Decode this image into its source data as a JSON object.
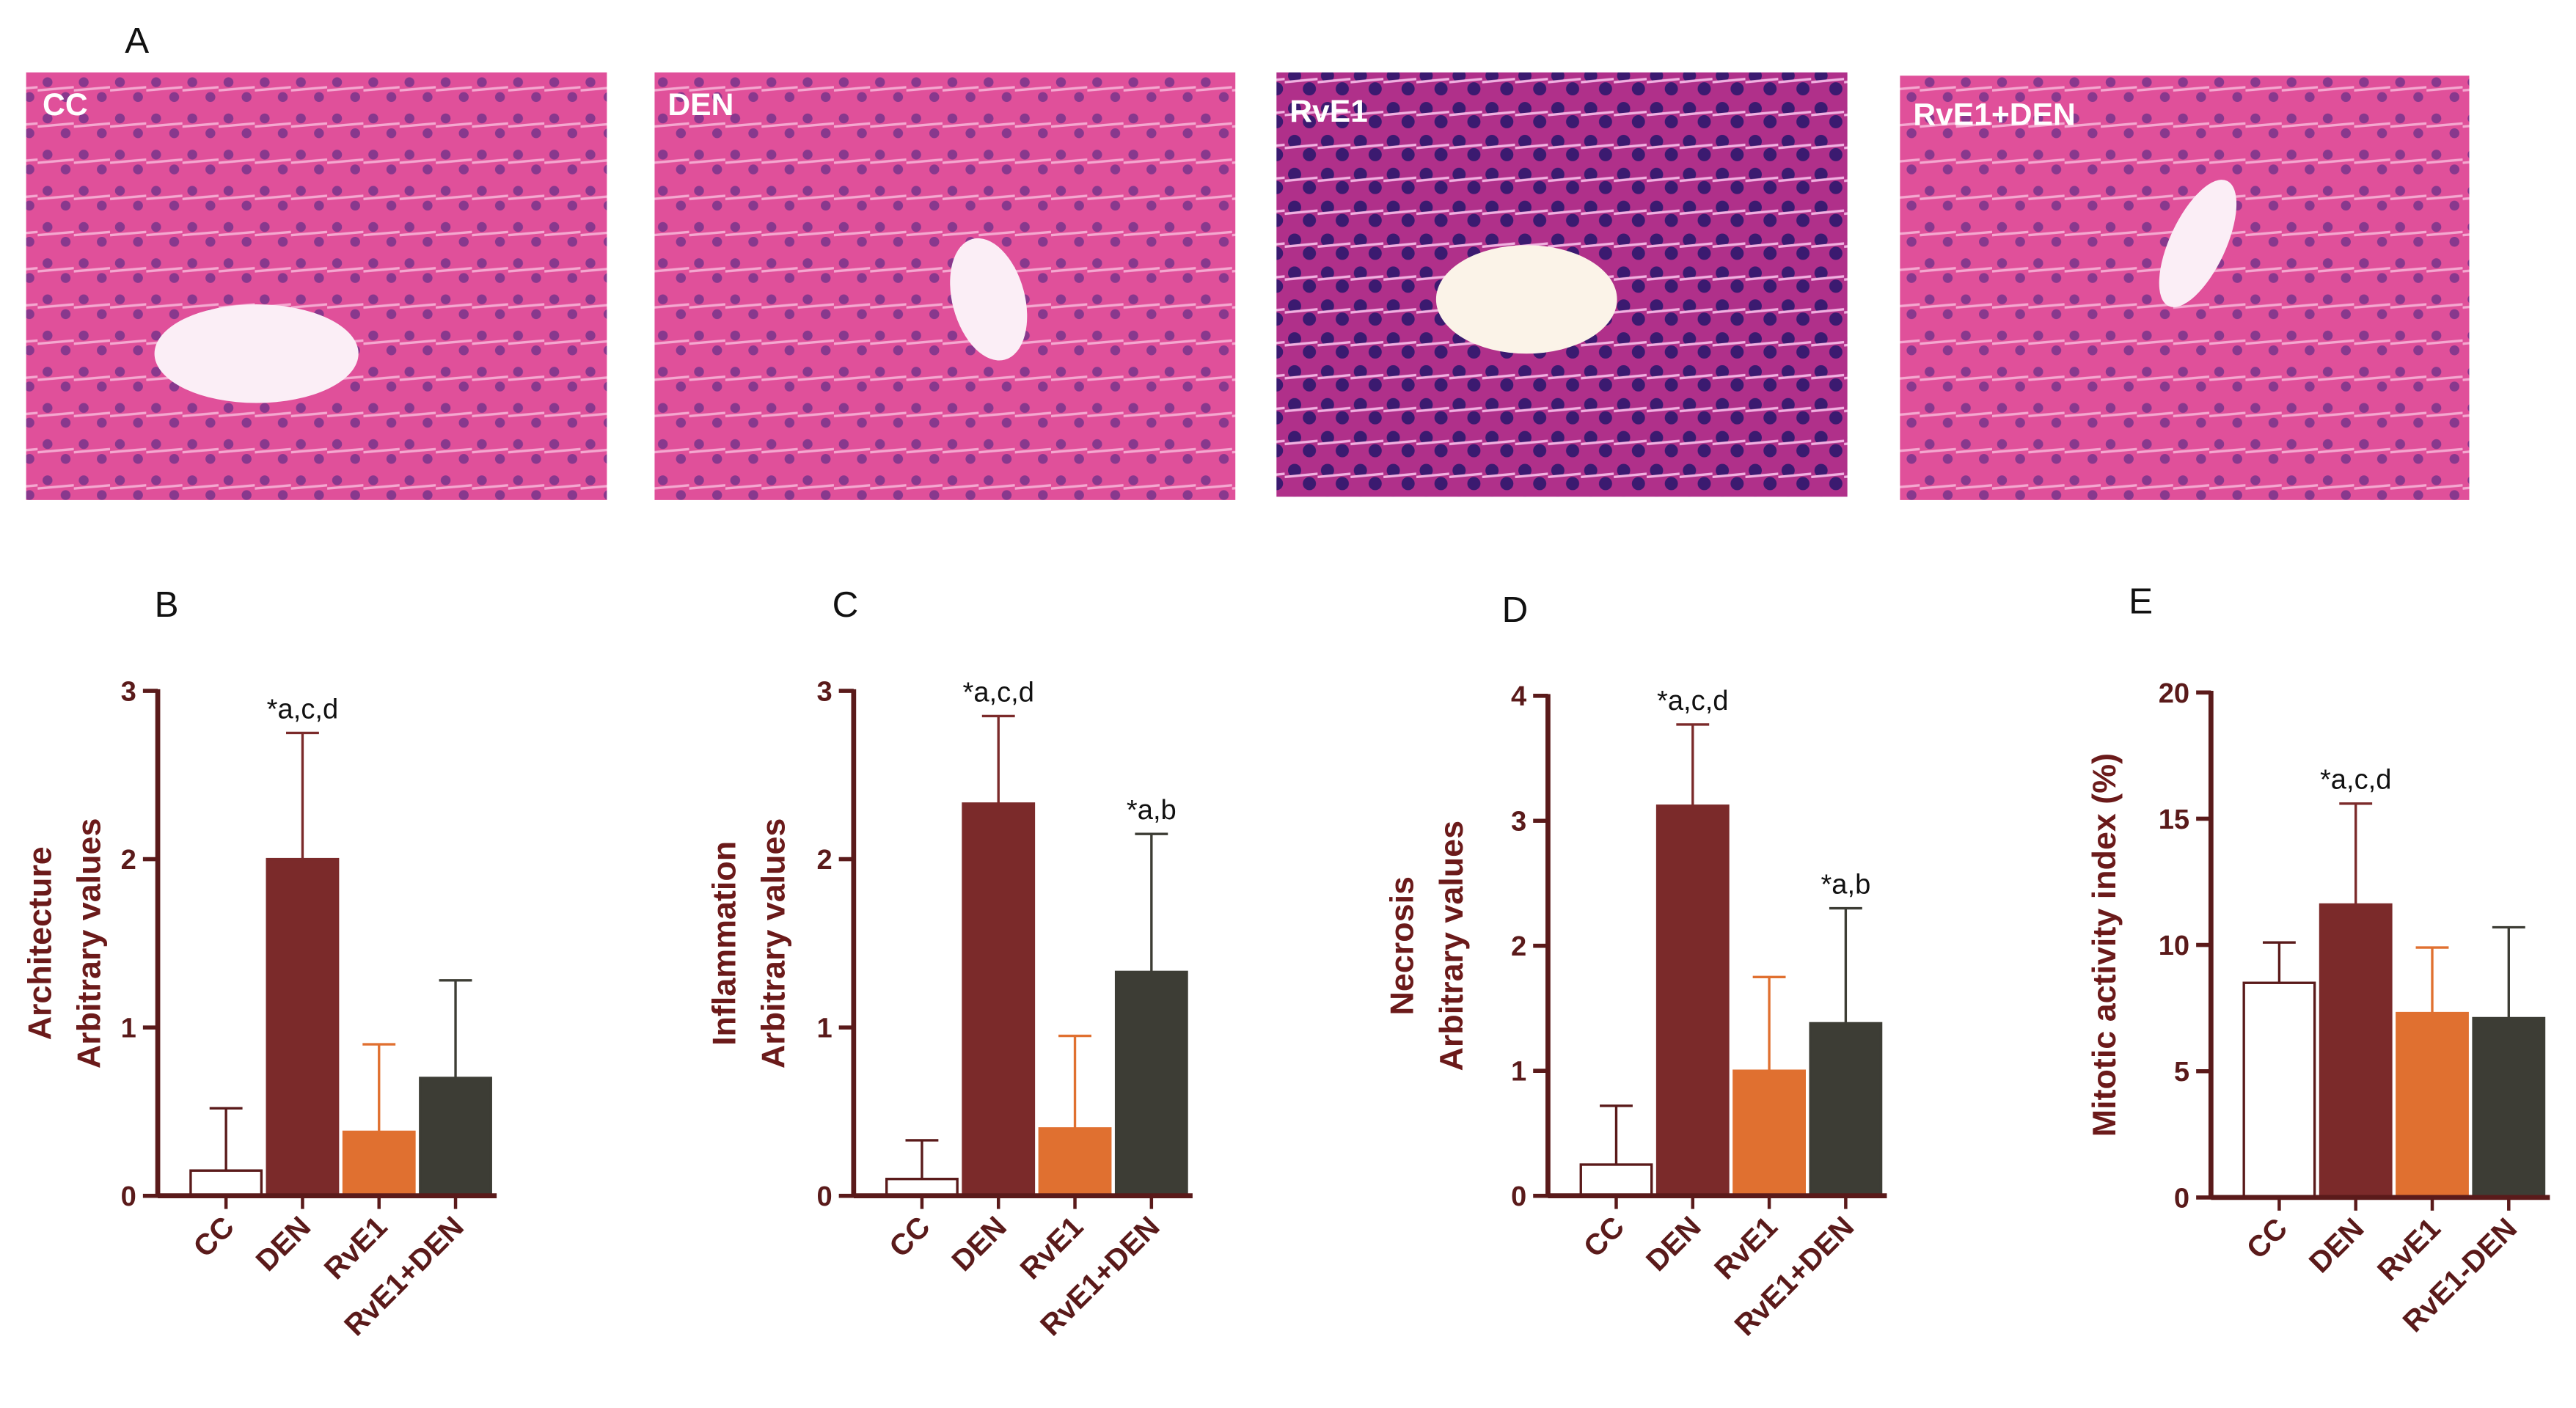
{
  "micrographs": {
    "panel": "A",
    "labels": [
      "CC",
      "DEN",
      "RvE1",
      "RvE1+DEN"
    ]
  },
  "chart_data": [
    {
      "type": "bar",
      "panel": "B",
      "ylabel": [
        "Architecture",
        "Arbitrary values"
      ],
      "categories": [
        "CC",
        "DEN",
        "RvE1",
        "RvE1+DEN"
      ],
      "values": [
        0.15,
        2.0,
        0.38,
        0.7
      ],
      "errors": [
        0.37,
        0.75,
        0.52,
        0.58
      ],
      "colors": [
        "#ffffff",
        "#7b2a2a",
        "#e07030",
        "#3d3d35"
      ],
      "annotations": [
        null,
        "*a,c,d",
        null,
        null
      ],
      "ylim": [
        0,
        3
      ],
      "yticks": [
        0,
        1,
        2,
        3
      ]
    },
    {
      "type": "bar",
      "panel": "C",
      "ylabel": [
        "Inflammation",
        "Arbitrary values"
      ],
      "categories": [
        "CC",
        "DEN",
        "RvE1",
        "RvE1+DEN"
      ],
      "values": [
        0.1,
        2.33,
        0.4,
        1.33
      ],
      "errors": [
        0.23,
        0.52,
        0.55,
        0.82
      ],
      "colors": [
        "#ffffff",
        "#7b2a2a",
        "#e07030",
        "#3d3d35"
      ],
      "annotations": [
        null,
        "*a,c,d",
        null,
        "*a,b"
      ],
      "ylim": [
        0,
        3
      ],
      "yticks": [
        0,
        1,
        2,
        3
      ]
    },
    {
      "type": "bar",
      "panel": "D",
      "ylabel": [
        "Necrosis",
        "Arbitrary values"
      ],
      "categories": [
        "CC",
        "DEN",
        "RvE1",
        "RvE1+DEN"
      ],
      "values": [
        0.25,
        3.12,
        1.0,
        1.38
      ],
      "errors": [
        0.47,
        0.65,
        0.75,
        0.92
      ],
      "colors": [
        "#ffffff",
        "#7b2a2a",
        "#e07030",
        "#3d3d35"
      ],
      "annotations": [
        null,
        "*a,c,d",
        null,
        "*a,b"
      ],
      "ylim": [
        0,
        4
      ],
      "yticks": [
        0,
        1,
        2,
        3,
        4
      ]
    },
    {
      "type": "bar",
      "panel": "E",
      "ylabel": [
        "Mitotic activity index (%)"
      ],
      "categories": [
        "CC",
        "DEN",
        "RvE1",
        "RvE1-DEN"
      ],
      "values": [
        8.5,
        11.6,
        7.3,
        7.1
      ],
      "errors": [
        1.6,
        4.0,
        2.6,
        3.6
      ],
      "colors": [
        "#ffffff",
        "#7b2a2a",
        "#e07030",
        "#3d3d35"
      ],
      "annotations": [
        null,
        "*a,c,d",
        null,
        null
      ],
      "ylim": [
        0,
        20
      ],
      "yticks": [
        0,
        5,
        10,
        15,
        20
      ]
    }
  ]
}
